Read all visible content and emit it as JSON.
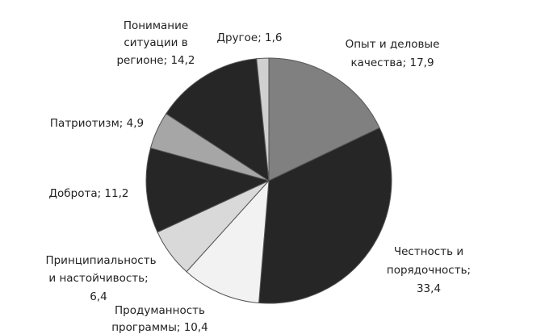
{
  "chart_data": {
    "type": "pie",
    "categories": [
      [
        "Опыт и деловые",
        "качества; 17,9"
      ],
      [
        "Честность и",
        "порядочность;",
        "33,4"
      ],
      [
        "Продуманность",
        "программы; 10,4"
      ],
      [
        "Принципиальность",
        "и настойчивость;",
        "6,4"
      ],
      [
        "Доброта; 11,2"
      ],
      [
        "Патриотизм; 4,9"
      ],
      [
        "Понимание",
        "ситуации в",
        "регионе; 14,2"
      ],
      [
        "Другое; 1,6"
      ]
    ],
    "values": [
      17.9,
      33.4,
      10.4,
      6.4,
      11.2,
      4.9,
      14.2,
      1.6
    ],
    "colors": [
      "#808080",
      "#262626",
      "#f2f2f2",
      "#d9d9d9",
      "#262626",
      "#a6a6a6",
      "#262626",
      "#d0d0d0"
    ]
  }
}
